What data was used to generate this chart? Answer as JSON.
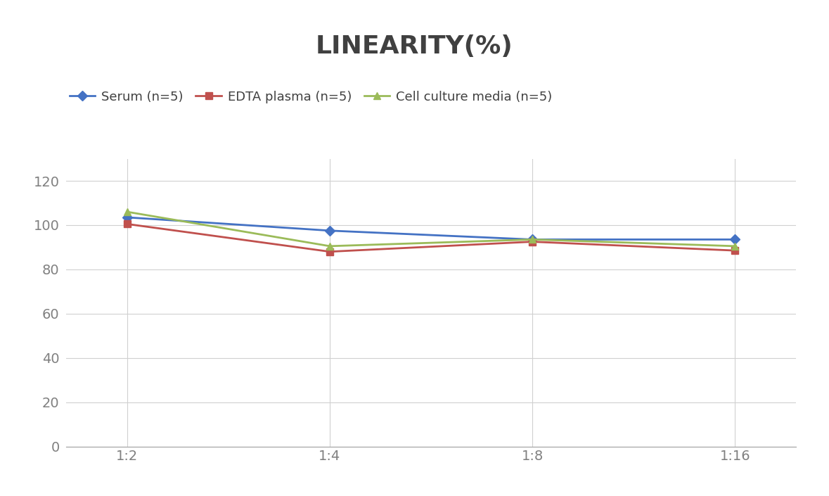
{
  "title": "LINEARITY(%)",
  "x_labels": [
    "1:2",
    "1:4",
    "1:8",
    "1:16"
  ],
  "x_positions": [
    0,
    1,
    2,
    3
  ],
  "series": [
    {
      "name": "Serum (n=5)",
      "values": [
        103.5,
        97.5,
        93.5,
        93.5
      ],
      "color": "#4472C4",
      "marker": "D",
      "linewidth": 2.0,
      "markersize": 7
    },
    {
      "name": "EDTA plasma (n=5)",
      "values": [
        100.5,
        88.0,
        92.5,
        88.5
      ],
      "color": "#C0504D",
      "marker": "s",
      "linewidth": 2.0,
      "markersize": 7
    },
    {
      "name": "Cell culture media (n=5)",
      "values": [
        106.0,
        90.5,
        93.5,
        90.5
      ],
      "color": "#9BBB59",
      "marker": "^",
      "linewidth": 2.0,
      "markersize": 7
    }
  ],
  "ylim": [
    0,
    130
  ],
  "yticks": [
    0,
    20,
    40,
    60,
    80,
    100,
    120
  ],
  "grid_color": "#D0D0D0",
  "background_color": "#FFFFFF",
  "title_fontsize": 26,
  "legend_fontsize": 13,
  "tick_fontsize": 14,
  "title_color": "#404040",
  "tick_color": "#808080"
}
